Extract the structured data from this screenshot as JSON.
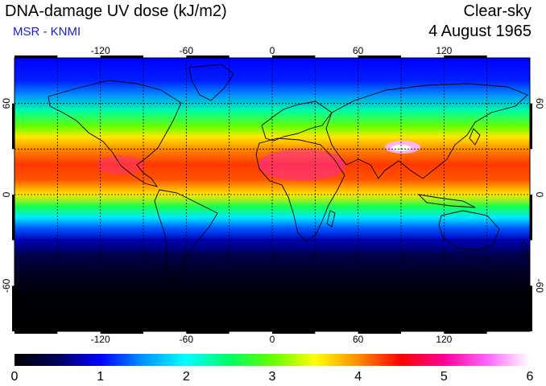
{
  "header": {
    "title": "DNA-damage UV dose (kJ/m2)",
    "subtitle": "MSR - KNMI",
    "sky_condition": "Clear-sky",
    "date": "4 August 1965"
  },
  "map": {
    "lon_range": [
      -180,
      180
    ],
    "lat_range": [
      -90,
      90
    ],
    "lon_ticks": [
      "-120",
      "-60",
      "0",
      "60",
      "120"
    ],
    "lat_ticks": [
      "60",
      "0",
      "-60"
    ],
    "lon_tick_values": [
      -120,
      -60,
      0,
      60,
      120
    ],
    "lat_tick_values": [
      60,
      0,
      -60
    ],
    "grid": "dashed, every 30 degrees",
    "uv_dose_by_latitude": [
      {
        "lat": 90,
        "dose": 1.0
      },
      {
        "lat": 75,
        "dose": 1.1
      },
      {
        "lat": 65,
        "dose": 1.5
      },
      {
        "lat": 55,
        "dose": 2.3
      },
      {
        "lat": 45,
        "dose": 3.0
      },
      {
        "lat": 38,
        "dose": 3.6
      },
      {
        "lat": 30,
        "dose": 4.0
      },
      {
        "lat": 20,
        "dose": 4.3
      },
      {
        "lat": 10,
        "dose": 4.2
      },
      {
        "lat": 0,
        "dose": 3.6
      },
      {
        "lat": -8,
        "dose": 2.6
      },
      {
        "lat": -15,
        "dose": 1.9
      },
      {
        "lat": -22,
        "dose": 1.3
      },
      {
        "lat": -30,
        "dose": 0.8
      },
      {
        "lat": -40,
        "dose": 0.4
      },
      {
        "lat": -55,
        "dose": 0.15
      },
      {
        "lat": -65,
        "dose": 0.05
      },
      {
        "lat": -90,
        "dose": 0.0
      }
    ]
  },
  "colorbar": {
    "min": 0,
    "max": 6,
    "tick_labels": [
      "0",
      "1",
      "2",
      "3",
      "4",
      "5",
      "6"
    ],
    "colors": [
      "#000000",
      "#00005a",
      "#0000ff",
      "#0096ff",
      "#00ffff",
      "#00ff64",
      "#64ff00",
      "#ffff00",
      "#ff8c00",
      "#ff0000",
      "#ff0096",
      "#ff64ff",
      "#ffffff"
    ]
  }
}
